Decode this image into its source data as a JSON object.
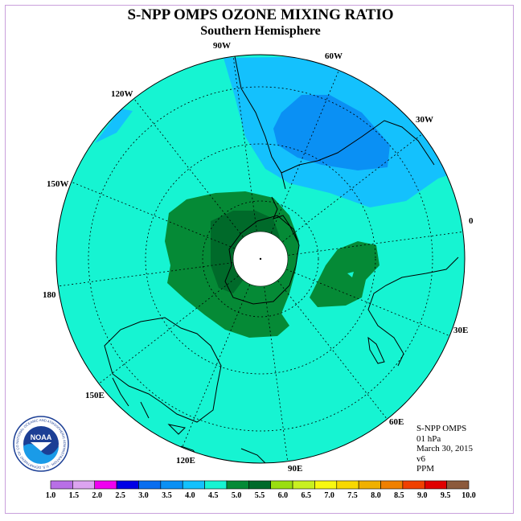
{
  "header": {
    "title": "S-NPP OMPS OZONE MIXING RATIO",
    "subtitle": "Southern Hemisphere"
  },
  "map": {
    "projection": "polar-stereographic-south",
    "longitude_labels": [
      "0",
      "30E",
      "60E",
      "90E",
      "120E",
      "150E",
      "180",
      "150W",
      "120W",
      "90W",
      "60W",
      "30W"
    ],
    "colors": {
      "background_field": "#16f4d2",
      "high_dark": "#006a2a",
      "high_mid": "#058a36",
      "low_light": "#14c1fd",
      "low_mid": "#0a90f4",
      "no_data": "#ffffff"
    }
  },
  "info": {
    "lines": [
      "S-NPP OMPS",
      "01 hPa",
      "March 30, 2015",
      "v6",
      "PPM"
    ]
  },
  "logo": {
    "text": "NOAA",
    "ring_text": "NATIONAL OCEANIC AND ATMOSPHERIC ADMINISTRATION · U.S. DEPARTMENT OF COMMERCE"
  },
  "colorbar": {
    "labels": [
      "1.0",
      "1.5",
      "2.0",
      "2.5",
      "3.0",
      "3.5",
      "4.0",
      "4.5",
      "5.0",
      "5.5",
      "6.0",
      "6.5",
      "7.0",
      "7.5",
      "8.0",
      "8.5",
      "9.0",
      "9.5",
      "10.0"
    ],
    "colors": [
      "#b86fe6",
      "#dca4f0",
      "#f000f0",
      "#0000e6",
      "#0a6ef0",
      "#0a90f4",
      "#14c1fd",
      "#16f4d2",
      "#058a36",
      "#006a2a",
      "#9ade10",
      "#c8f020",
      "#f8f810",
      "#f8d800",
      "#f0b000",
      "#f08000",
      "#f04000",
      "#e00000",
      "#8c5a3c"
    ]
  }
}
